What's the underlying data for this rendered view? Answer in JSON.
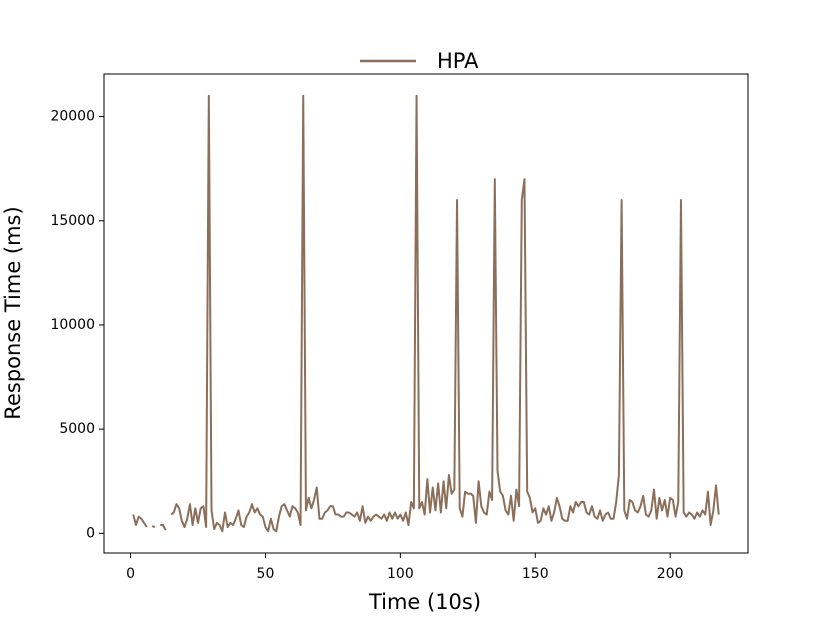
{
  "chart_data": {
    "type": "line",
    "x_label": "Time (10s)",
    "y_label": "Response Time (ms)",
    "legend": "upper center outside",
    "x": [
      1,
      2,
      3,
      4,
      5,
      6,
      7,
      8,
      9,
      10,
      11,
      12,
      13,
      14,
      15,
      16,
      17,
      18,
      19,
      20,
      21,
      22,
      23,
      24,
      25,
      26,
      27,
      28,
      29,
      30,
      31,
      32,
      33,
      34,
      35,
      36,
      37,
      38,
      39,
      40,
      41,
      42,
      43,
      44,
      45,
      46,
      47,
      48,
      49,
      50,
      51,
      52,
      53,
      54,
      55,
      56,
      57,
      58,
      59,
      60,
      61,
      62,
      63,
      64,
      65,
      66,
      67,
      68,
      69,
      70,
      71,
      72,
      73,
      74,
      75,
      76,
      77,
      78,
      79,
      80,
      81,
      82,
      83,
      84,
      85,
      86,
      87,
      88,
      89,
      90,
      91,
      92,
      93,
      94,
      95,
      96,
      97,
      98,
      99,
      100,
      101,
      102,
      103,
      104,
      105,
      106,
      107,
      108,
      109,
      110,
      111,
      112,
      113,
      114,
      115,
      116,
      117,
      118,
      119,
      120,
      121,
      122,
      123,
      124,
      125,
      126,
      127,
      128,
      129,
      130,
      131,
      132,
      133,
      134,
      135,
      136,
      137,
      138,
      139,
      140,
      141,
      142,
      143,
      144,
      145,
      146,
      147,
      148,
      149,
      150,
      151,
      152,
      153,
      154,
      155,
      156,
      157,
      158,
      159,
      160,
      161,
      162,
      163,
      164,
      165,
      166,
      167,
      168,
      169,
      170,
      171,
      172,
      173,
      174,
      175,
      176,
      177,
      178,
      179,
      180,
      181,
      182,
      183,
      184,
      185,
      186,
      187,
      188,
      189,
      190,
      191,
      192,
      193,
      194,
      195,
      196,
      197,
      198,
      199,
      200,
      201,
      202,
      203,
      204,
      205,
      206,
      207,
      208,
      209,
      210,
      211,
      212,
      213,
      214,
      215,
      216,
      217,
      218
    ],
    "series": [
      {
        "name": "HPA",
        "color": "#8b6f5a",
        "values": [
          900,
          400,
          800,
          700,
          500,
          300,
          null,
          350,
          300,
          null,
          400,
          400,
          150,
          null,
          900,
          1000,
          1400,
          1200,
          600,
          300,
          700,
          1400,
          400,
          1200,
          500,
          1200,
          1300,
          300,
          21000,
          1100,
          200,
          500,
          400,
          100,
          1000,
          300,
          500,
          400,
          700,
          1100,
          400,
          300,
          800,
          1000,
          1400,
          1000,
          1200,
          900,
          800,
          300,
          100,
          700,
          200,
          100,
          800,
          1300,
          1400,
          1100,
          800,
          1300,
          1200,
          1000,
          400,
          21000,
          1100,
          1700,
          1200,
          1600,
          2200,
          700,
          700,
          1000,
          1100,
          1300,
          1300,
          900,
          900,
          800,
          800,
          1000,
          1000,
          900,
          800,
          1000,
          600,
          1300,
          500,
          800,
          600,
          800,
          900,
          800,
          700,
          900,
          600,
          1000,
          700,
          1000,
          700,
          900,
          600,
          1000,
          400,
          1500,
          1200,
          21000,
          1200,
          1500,
          900,
          2600,
          1000,
          2200,
          1100,
          2400,
          1000,
          2500,
          1200,
          2800,
          1900,
          2100,
          16000,
          1200,
          800,
          2000,
          1900,
          1900,
          1800,
          500,
          2500,
          1300,
          1000,
          900,
          2000,
          1600,
          17000,
          3000,
          2000,
          1800,
          1100,
          900,
          1800,
          600,
          2100,
          1300,
          16000,
          17000,
          2000,
          1700,
          1000,
          1200,
          500,
          600,
          1200,
          900,
          1300,
          600,
          1000,
          1700,
          1300,
          700,
          600,
          600,
          1300,
          1000,
          1500,
          1300,
          1500,
          1500,
          1000,
          900,
          1300,
          800,
          700,
          1100,
          600,
          900,
          1000,
          700,
          700,
          1500,
          2800,
          16000,
          1100,
          700,
          1600,
          1500,
          1100,
          1000,
          1300,
          1800,
          900,
          800,
          1100,
          2100,
          700,
          1700,
          1100,
          1600,
          800,
          1700,
          1600,
          800,
          1500,
          16000,
          1000,
          800,
          1000,
          900,
          700,
          1000,
          800,
          1100,
          900,
          2000,
          400,
          1100,
          2300,
          900
        ]
      }
    ],
    "xlim": [
      -9.85,
      228.85
    ],
    "xticks": [
      0,
      50,
      100,
      150,
      200
    ],
    "ylim": [
      -945,
      22045
    ],
    "yticks": [
      0,
      5000,
      10000,
      15000,
      20000
    ],
    "grid": false
  }
}
